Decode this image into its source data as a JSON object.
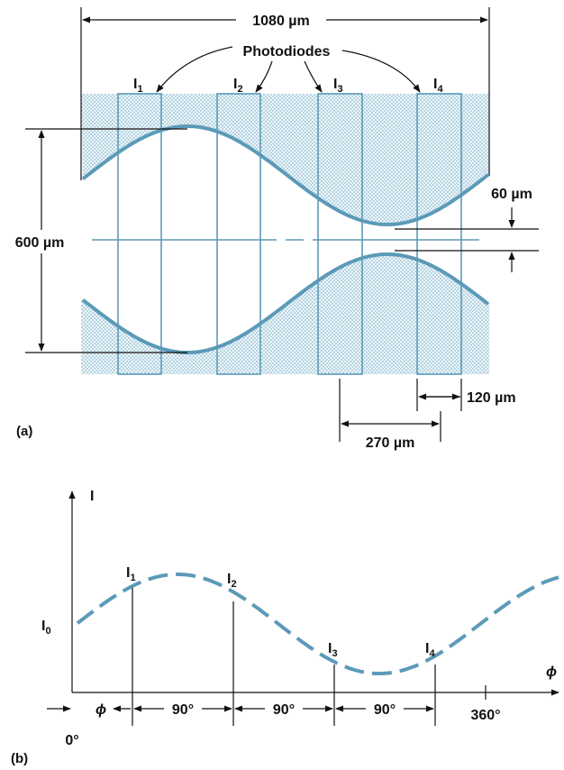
{
  "colors": {
    "accent": "#5b9ab8",
    "stipple": "#9fc6d6",
    "line": "#111111"
  },
  "panel_a": {
    "panel_label": "(a)",
    "width_dim": "1080 µm",
    "photodiodes_label": "Photodiodes",
    "diodes": [
      {
        "main": "I",
        "sub": "1"
      },
      {
        "main": "I",
        "sub": "2"
      },
      {
        "main": "I",
        "sub": "3"
      },
      {
        "main": "I",
        "sub": "4"
      }
    ],
    "height_dim": "600 µm",
    "gap_dim": "60 µm",
    "diode_width_dim": "120 µm",
    "pitch_dim": "270 µm"
  },
  "panel_b": {
    "panel_label": "(b)",
    "y_axis_label": "I",
    "x_axis_label": "ϕ",
    "baseline_label": {
      "main": "I",
      "sub": "0"
    },
    "origin_label": "0°",
    "phase_label": "ϕ",
    "sample_labels": [
      {
        "main": "I",
        "sub": "1"
      },
      {
        "main": "I",
        "sub": "2"
      },
      {
        "main": "I",
        "sub": "3"
      },
      {
        "main": "I",
        "sub": "4"
      }
    ],
    "intervals": [
      "90°",
      "90°",
      "90°"
    ],
    "end_tick_label": "360°"
  }
}
